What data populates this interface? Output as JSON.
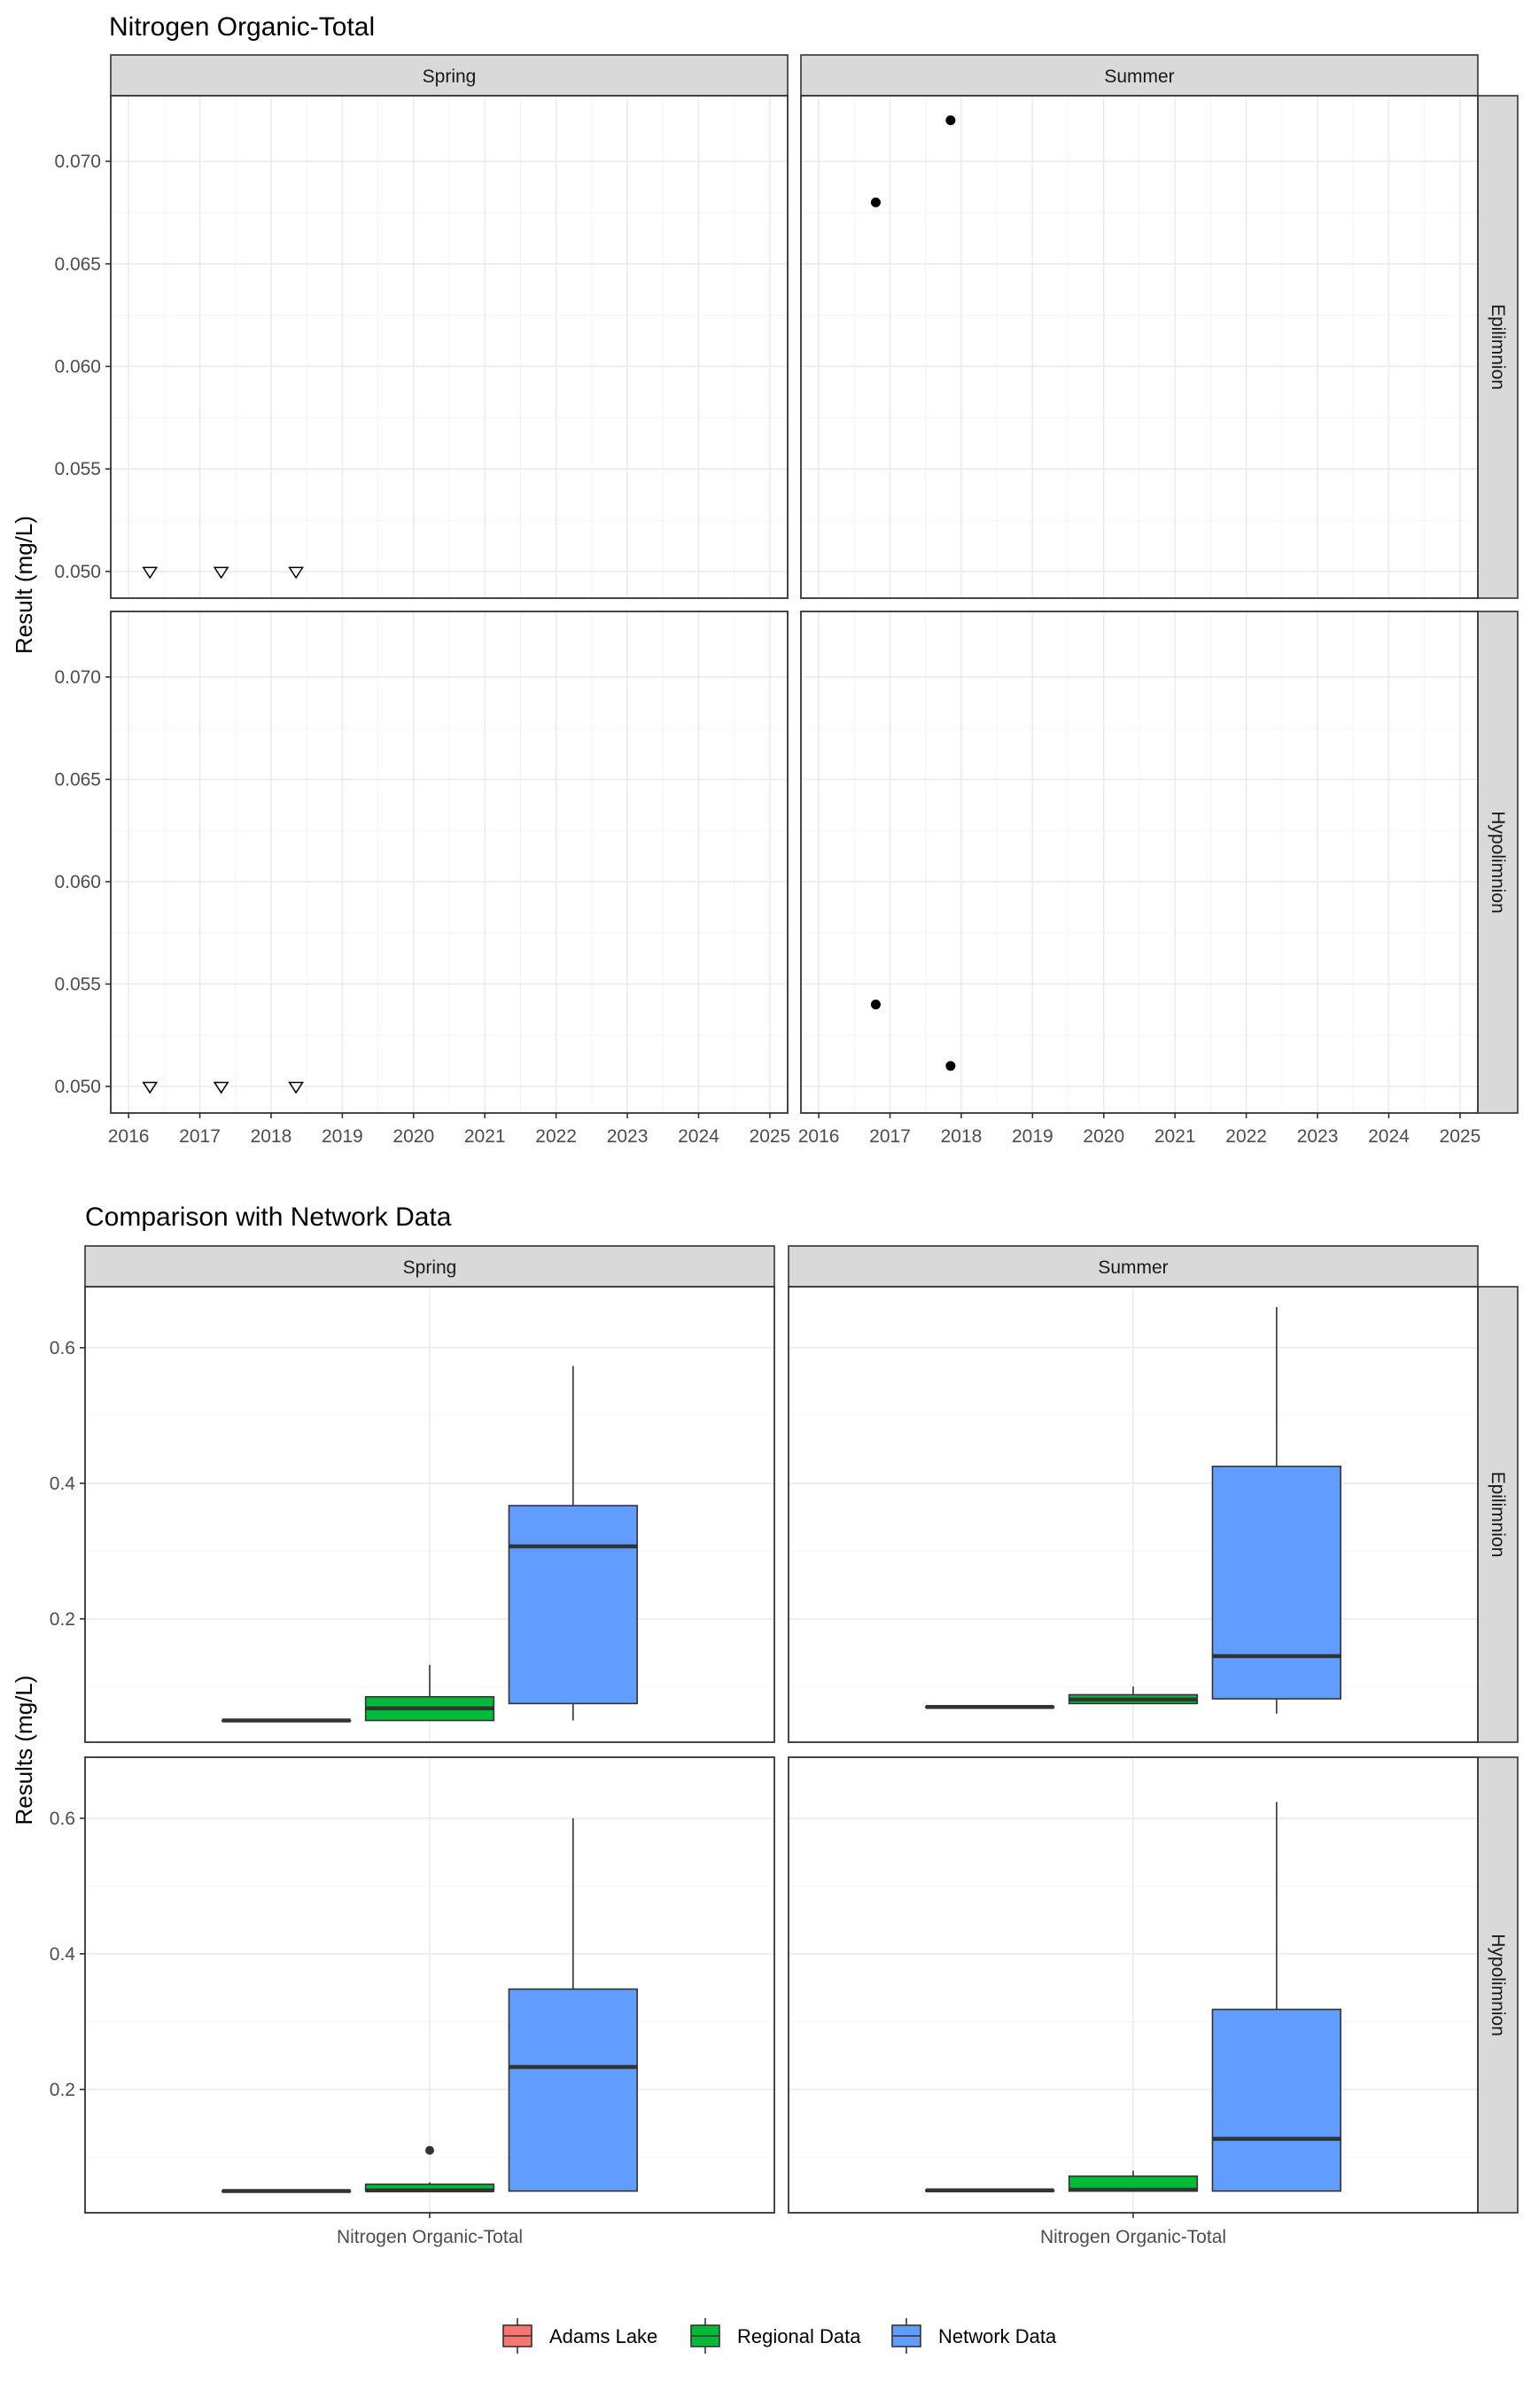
{
  "chart_data": [
    {
      "type": "scatter",
      "title": "Nitrogen Organic-Total",
      "ylabel": "Result (mg/L)",
      "xlabel": "",
      "columns": [
        "Spring",
        "Summer"
      ],
      "rows": [
        "Epilimnion",
        "Hypolimnion"
      ],
      "xlim": [
        2015.75,
        2025.25
      ],
      "ylim": [
        0.0487,
        0.0732
      ],
      "x_ticks": [
        2016,
        2017,
        2018,
        2019,
        2020,
        2021,
        2022,
        2023,
        2024,
        2025
      ],
      "x_tick_labels": [
        "2016",
        "2017",
        "2018",
        "2019",
        "2020",
        "2021",
        "2022",
        "2023",
        "2024",
        "2025"
      ],
      "y_ticks": [
        0.05,
        0.055,
        0.06,
        0.065,
        0.07
      ],
      "y_tick_labels": [
        "0.050",
        "0.055",
        "0.060",
        "0.065",
        "0.070"
      ],
      "grid": true,
      "panels": [
        {
          "column": "Spring",
          "row": "Epilimnion",
          "points": [
            {
              "x": 2016.3,
              "y": 0.05,
              "marker": "open-triangle-down"
            },
            {
              "x": 2017.3,
              "y": 0.05,
              "marker": "open-triangle-down"
            },
            {
              "x": 2018.35,
              "y": 0.05,
              "marker": "open-triangle-down"
            }
          ]
        },
        {
          "column": "Summer",
          "row": "Epilimnion",
          "points": [
            {
              "x": 2016.8,
              "y": 0.068,
              "marker": "filled-circle"
            },
            {
              "x": 2017.85,
              "y": 0.072,
              "marker": "filled-circle"
            }
          ]
        },
        {
          "column": "Spring",
          "row": "Hypolimnion",
          "points": [
            {
              "x": 2016.3,
              "y": 0.05,
              "marker": "open-triangle-down"
            },
            {
              "x": 2017.3,
              "y": 0.05,
              "marker": "open-triangle-down"
            },
            {
              "x": 2018.35,
              "y": 0.05,
              "marker": "open-triangle-down"
            }
          ]
        },
        {
          "column": "Summer",
          "row": "Hypolimnion",
          "points": [
            {
              "x": 2016.8,
              "y": 0.054,
              "marker": "filled-circle"
            },
            {
              "x": 2017.85,
              "y": 0.051,
              "marker": "filled-circle"
            }
          ]
        }
      ]
    },
    {
      "type": "box",
      "title": "Comparison with Network Data",
      "ylabel": "Results (mg/L)",
      "xlabel": "",
      "category": "Nitrogen Organic-Total",
      "columns": [
        "Spring",
        "Summer"
      ],
      "rows": [
        "Epilimnion",
        "Hypolimnion"
      ],
      "ylim": [
        0.018,
        0.69
      ],
      "y_ticks": [
        0.2,
        0.4,
        0.6
      ],
      "y_tick_labels": [
        "0.2",
        "0.4",
        "0.6"
      ],
      "grid": true,
      "legend_position": "bottom",
      "series": [
        {
          "name": "Adams Lake",
          "color": "#f8766d"
        },
        {
          "name": "Regional Data",
          "color": "#00ba38"
        },
        {
          "name": "Network Data",
          "color": "#619cff"
        }
      ],
      "panels": [
        {
          "column": "Spring",
          "row": "Epilimnion",
          "boxes": [
            {
              "series": "Adams Lake",
              "min": 0.05,
              "q1": 0.05,
              "median": 0.05,
              "q3": 0.05,
              "max": 0.05,
              "outliers": []
            },
            {
              "series": "Regional Data",
              "min": 0.05,
              "q1": 0.05,
              "median": 0.068,
              "q3": 0.085,
              "max": 0.132,
              "outliers": []
            },
            {
              "series": "Network Data",
              "min": 0.05,
              "q1": 0.075,
              "median": 0.307,
              "q3": 0.367,
              "max": 0.573,
              "outliers": []
            }
          ]
        },
        {
          "column": "Summer",
          "row": "Epilimnion",
          "boxes": [
            {
              "series": "Adams Lake",
              "min": 0.07,
              "q1": 0.07,
              "median": 0.07,
              "q3": 0.07,
              "max": 0.07,
              "outliers": []
            },
            {
              "series": "Regional Data",
              "min": 0.075,
              "q1": 0.075,
              "median": 0.081,
              "q3": 0.088,
              "max": 0.1,
              "outliers": []
            },
            {
              "series": "Network Data",
              "min": 0.06,
              "q1": 0.082,
              "median": 0.145,
              "q3": 0.425,
              "max": 0.66,
              "outliers": []
            }
          ]
        },
        {
          "column": "Spring",
          "row": "Hypolimnion",
          "boxes": [
            {
              "series": "Adams Lake",
              "min": 0.05,
              "q1": 0.05,
              "median": 0.05,
              "q3": 0.05,
              "max": 0.05,
              "outliers": []
            },
            {
              "series": "Regional Data",
              "min": 0.05,
              "q1": 0.05,
              "median": 0.051,
              "q3": 0.06,
              "max": 0.063,
              "outliers": [
                0.11
              ]
            },
            {
              "series": "Network Data",
              "min": 0.05,
              "q1": 0.05,
              "median": 0.233,
              "q3": 0.348,
              "max": 0.6,
              "outliers": []
            }
          ]
        },
        {
          "column": "Summer",
          "row": "Hypolimnion",
          "boxes": [
            {
              "series": "Adams Lake",
              "min": 0.051,
              "q1": 0.051,
              "median": 0.051,
              "q3": 0.051,
              "max": 0.051,
              "outliers": []
            },
            {
              "series": "Regional Data",
              "min": 0.05,
              "q1": 0.05,
              "median": 0.052,
              "q3": 0.072,
              "max": 0.08,
              "outliers": []
            },
            {
              "series": "Network Data",
              "min": 0.05,
              "q1": 0.05,
              "median": 0.127,
              "q3": 0.318,
              "max": 0.624,
              "outliers": []
            }
          ]
        }
      ]
    }
  ]
}
